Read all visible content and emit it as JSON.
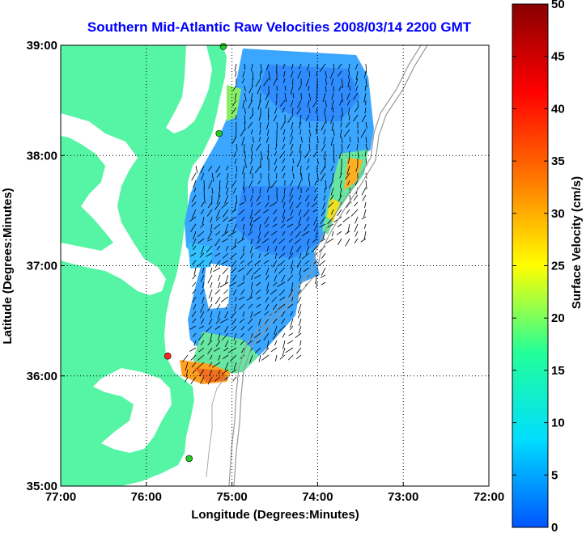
{
  "chart_data": {
    "type": "heatmap",
    "title": "Southern Mid-Atlantic Raw Velocities 2008/03/14 2200 GMT",
    "xlabel": "Longitude (Degrees:Minutes)",
    "ylabel": "Latitude (Degrees:Minutes)",
    "xlim": [
      -77,
      -72
    ],
    "ylim": [
      35,
      39
    ],
    "x_ticks": [
      {
        "value": -77,
        "label": "77:00"
      },
      {
        "value": -76,
        "label": "76:00"
      },
      {
        "value": -75,
        "label": "75:00"
      },
      {
        "value": -74,
        "label": "74:00"
      },
      {
        "value": -73,
        "label": "73:00"
      },
      {
        "value": -72,
        "label": "72:00"
      }
    ],
    "y_ticks": [
      {
        "value": 35,
        "label": "35:00"
      },
      {
        "value": 36,
        "label": "36:00"
      },
      {
        "value": 37,
        "label": "37:00"
      },
      {
        "value": 38,
        "label": "38:00"
      },
      {
        "value": 39,
        "label": "39:00"
      }
    ],
    "grid": true,
    "colorbar": {
      "label": "Surface Velocity (cm/s)",
      "range": [
        0,
        50
      ],
      "ticks": [
        "0",
        "5",
        "10",
        "15",
        "20",
        "25",
        "30",
        "35",
        "40",
        "45",
        "50"
      ],
      "colormap": [
        "#0055ff",
        "#00ddff",
        "#22ff99",
        "#ffff00",
        "#ff7700",
        "#ff0000",
        "#880000"
      ]
    },
    "land_color": "#55f5a5",
    "stations": [
      {
        "lon": -75.1,
        "lat": 38.99,
        "color": "#22cc22"
      },
      {
        "lon": -75.15,
        "lat": 38.2,
        "color": "#22cc22"
      },
      {
        "lon": -75.75,
        "lat": 36.18,
        "color": "#ff2222"
      },
      {
        "lon": -75.5,
        "lat": 35.25,
        "color": "#22cc22"
      }
    ]
  }
}
